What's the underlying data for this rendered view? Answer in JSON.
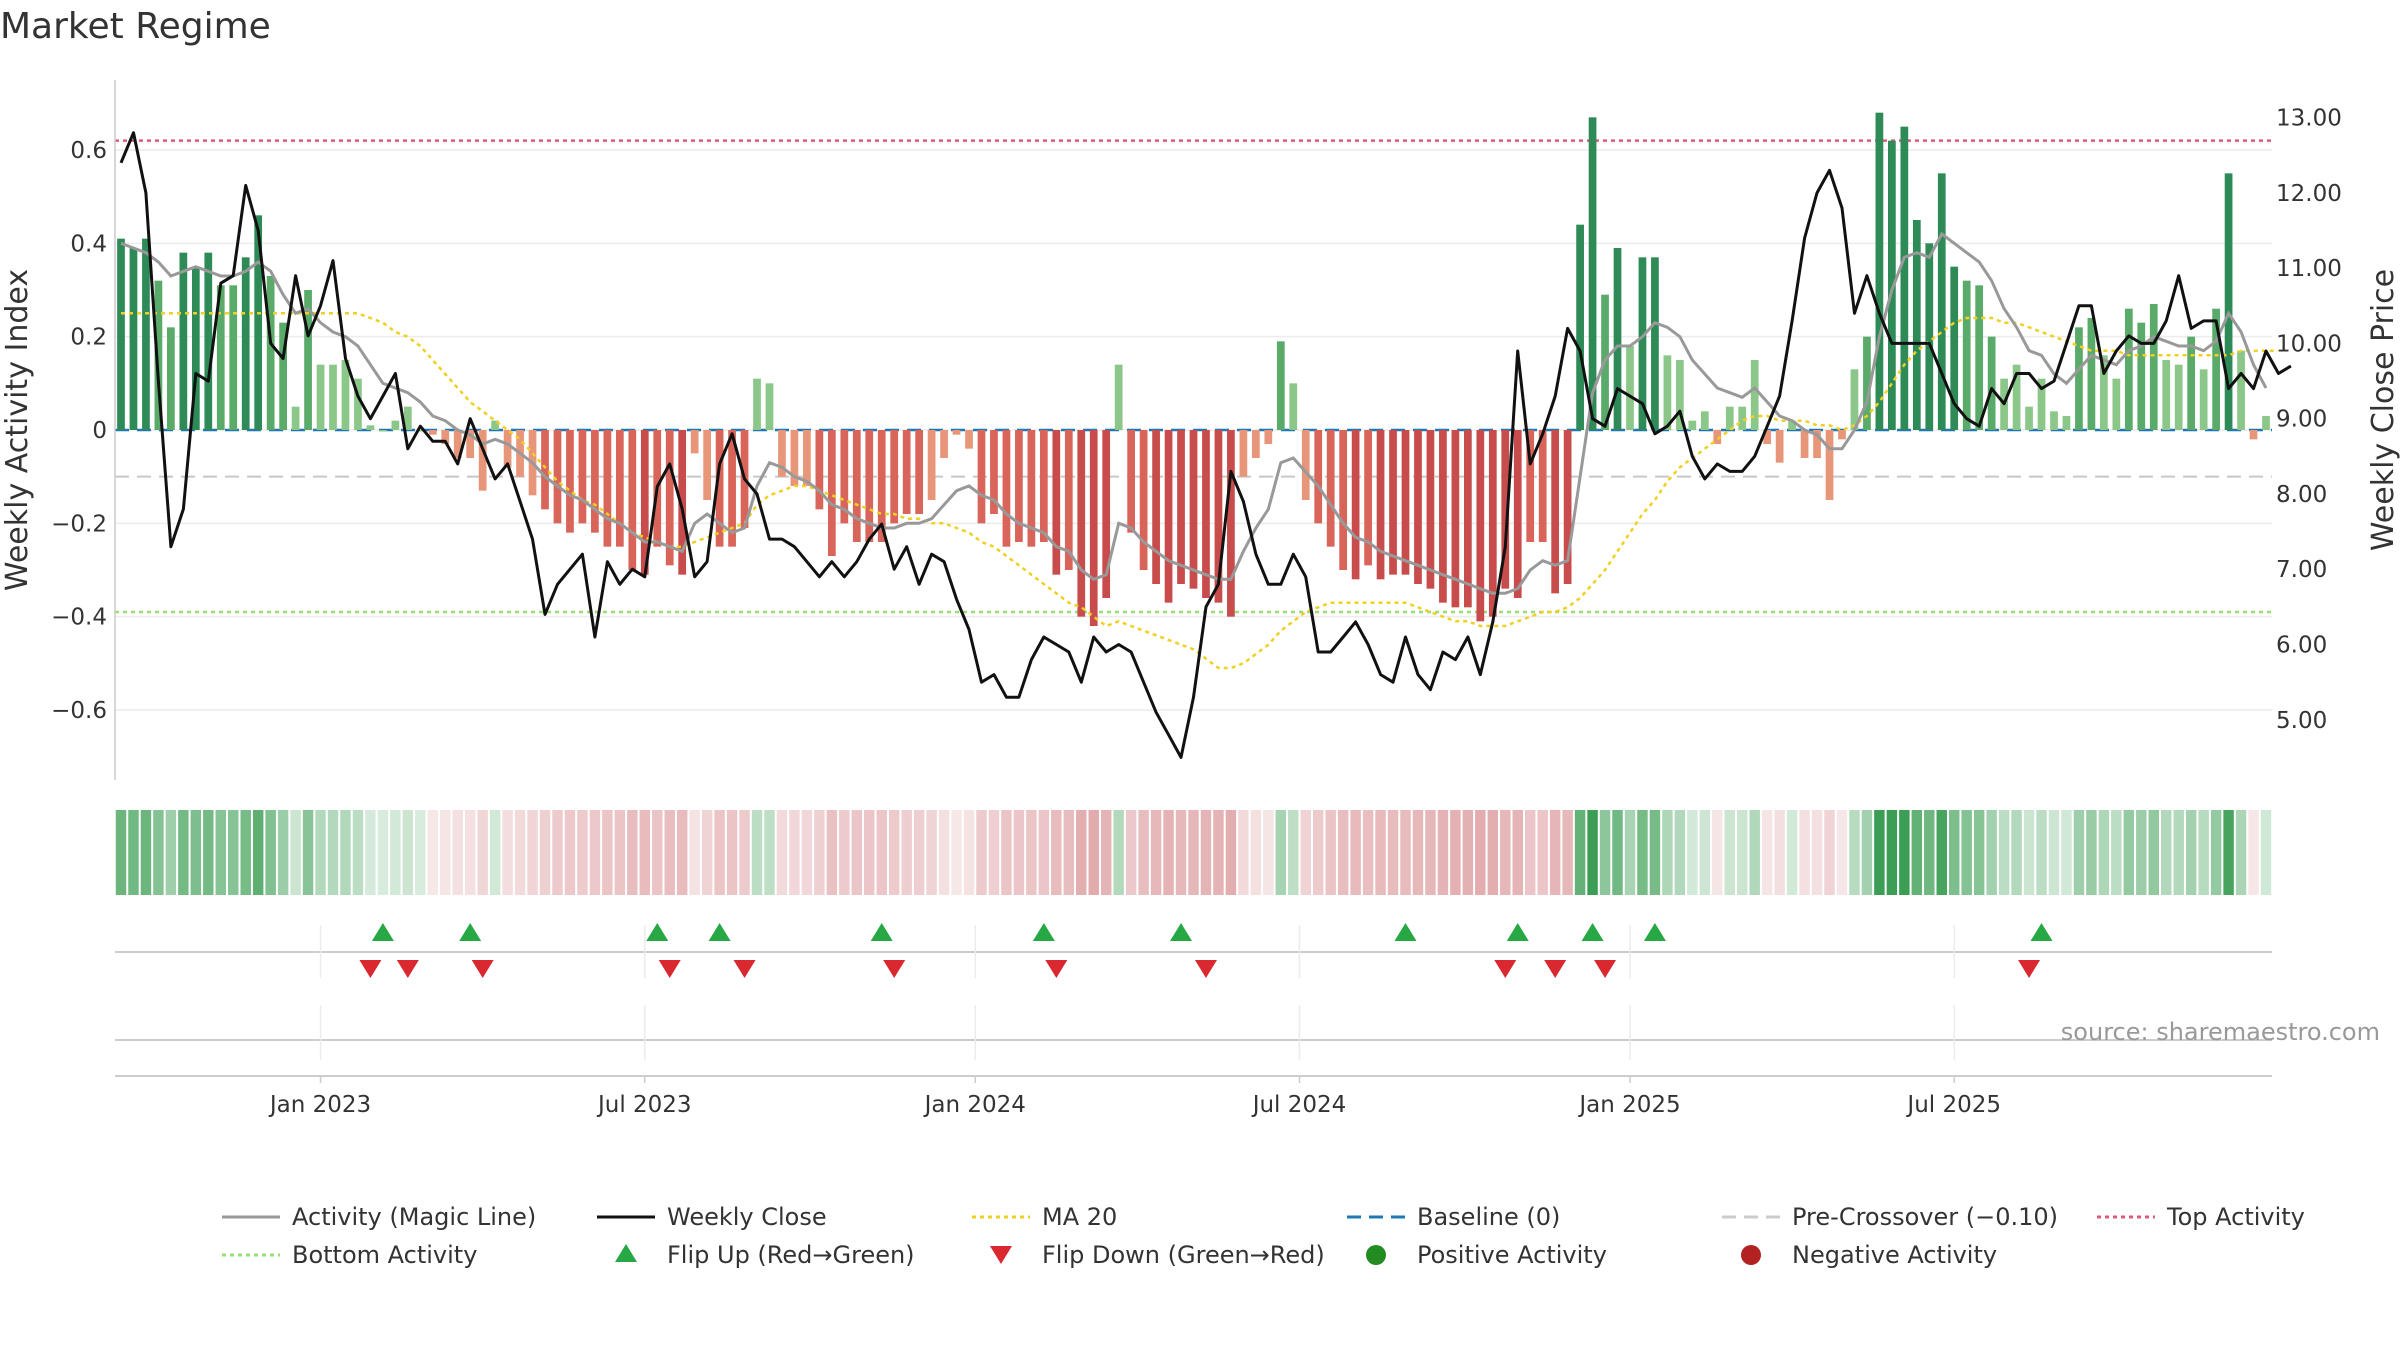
{
  "chart_data": {
    "type": "bar",
    "title": "Market Regime",
    "source": "source: sharemaestro.com",
    "ylabel_left": "Weekly Activity Index",
    "ylabel_right": "Weekly Close Price",
    "ylim_left": [
      -0.75,
      0.75
    ],
    "ylim_right": [
      4.2,
      13.5
    ],
    "yticks_left": [
      -0.6,
      -0.4,
      -0.2,
      0,
      0.2,
      0.4,
      0.6
    ],
    "yticks_left_labels": [
      "−0.6",
      "−0.4",
      "−0.2",
      "0",
      "0.2",
      "0.4",
      "0.6"
    ],
    "yticks_right": [
      5,
      6,
      7,
      8,
      9,
      10,
      11,
      12,
      13
    ],
    "yticks_right_labels": [
      "5.00",
      "6.00",
      "7.00",
      "8.00",
      "9.00",
      "10.00",
      "11.00",
      "12.00",
      "13.00"
    ],
    "x_ticks": [
      {
        "label": "Jan 2023",
        "week": 16
      },
      {
        "label": "Jul 2023",
        "week": 42
      },
      {
        "label": "Jan 2024",
        "week": 68.5
      },
      {
        "label": "Jul 2024",
        "week": 94.5
      },
      {
        "label": "Jan 2025",
        "week": 121
      },
      {
        "label": "Jul 2025",
        "week": 147
      }
    ],
    "reference_lines": {
      "top_activity": 0.62,
      "bottom_activity": -0.39,
      "pre_crossover": -0.1,
      "baseline": 0
    },
    "activity": [
      0.41,
      0.39,
      0.41,
      0.32,
      0.22,
      0.38,
      0.35,
      0.38,
      0.31,
      0.31,
      0.37,
      0.46,
      0.33,
      0.23,
      0.05,
      0.3,
      0.14,
      0.14,
      0.15,
      0.11,
      0.01,
      0,
      0.02,
      0.05,
      0,
      -0.01,
      -0.03,
      -0.06,
      -0.06,
      -0.13,
      0.02,
      -0.08,
      -0.1,
      -0.14,
      -0.17,
      -0.2,
      -0.22,
      -0.2,
      -0.22,
      -0.25,
      -0.25,
      -0.3,
      -0.31,
      -0.25,
      -0.29,
      -0.31,
      -0.05,
      -0.15,
      -0.25,
      -0.25,
      -0.21,
      0.11,
      0.1,
      -0.1,
      -0.12,
      -0.12,
      -0.17,
      -0.27,
      -0.2,
      -0.24,
      -0.24,
      -0.24,
      -0.2,
      -0.18,
      -0.18,
      -0.15,
      -0.06,
      -0.01,
      -0.04,
      -0.2,
      -0.18,
      -0.25,
      -0.24,
      -0.25,
      -0.24,
      -0.31,
      -0.3,
      -0.4,
      -0.42,
      -0.36,
      0.14,
      -0.22,
      -0.3,
      -0.33,
      -0.37,
      -0.33,
      -0.34,
      -0.36,
      -0.37,
      -0.4,
      -0.1,
      -0.06,
      -0.03,
      0.19,
      0.1,
      -0.15,
      -0.2,
      -0.25,
      -0.3,
      -0.32,
      -0.29,
      -0.32,
      -0.31,
      -0.31,
      -0.33,
      -0.34,
      -0.37,
      -0.38,
      -0.38,
      -0.41,
      -0.4,
      -0.34,
      -0.36,
      -0.24,
      -0.24,
      -0.35,
      -0.33,
      0.44,
      0.67,
      0.29,
      0.39,
      0.18,
      0.37,
      0.37,
      0.16,
      0.15,
      0.02,
      0.04,
      -0.03,
      0.05,
      0.05,
      0.15,
      -0.03,
      -0.07,
      0.02,
      -0.06,
      -0.06,
      -0.15,
      -0.02,
      0.13,
      0.2,
      0.68,
      0.62,
      0.65,
      0.45,
      0.4,
      0.55,
      0.35,
      0.32,
      0.31,
      0.2,
      0.11,
      0.14,
      0.05,
      0.11,
      0.04,
      0.03,
      0.22,
      0.24,
      0.16,
      0.11,
      0.26,
      0.23,
      0.27,
      0.15,
      0.14,
      0.2,
      0.13,
      0.26,
      0.55,
      0.17,
      -0.02,
      0.03
    ],
    "magic_line": [
      0.4,
      0.39,
      0.38,
      0.36,
      0.33,
      0.34,
      0.35,
      0.34,
      0.33,
      0.33,
      0.34,
      0.36,
      0.34,
      0.29,
      0.25,
      0.26,
      0.23,
      0.21,
      0.2,
      0.18,
      0.14,
      0.1,
      0.09,
      0.08,
      0.06,
      0.03,
      0.02,
      0,
      -0.01,
      -0.03,
      -0.02,
      -0.03,
      -0.05,
      -0.07,
      -0.1,
      -0.12,
      -0.14,
      -0.15,
      -0.17,
      -0.19,
      -0.2,
      -0.22,
      -0.24,
      -0.24,
      -0.25,
      -0.26,
      -0.2,
      -0.18,
      -0.2,
      -0.22,
      -0.21,
      -0.12,
      -0.07,
      -0.08,
      -0.1,
      -0.11,
      -0.13,
      -0.16,
      -0.17,
      -0.19,
      -0.2,
      -0.21,
      -0.21,
      -0.2,
      -0.2,
      -0.19,
      -0.16,
      -0.13,
      -0.12,
      -0.14,
      -0.15,
      -0.18,
      -0.2,
      -0.21,
      -0.22,
      -0.25,
      -0.26,
      -0.3,
      -0.32,
      -0.31,
      -0.2,
      -0.21,
      -0.24,
      -0.26,
      -0.28,
      -0.29,
      -0.3,
      -0.31,
      -0.32,
      -0.32,
      -0.26,
      -0.21,
      -0.17,
      -0.07,
      -0.06,
      -0.09,
      -0.12,
      -0.16,
      -0.2,
      -0.23,
      -0.24,
      -0.26,
      -0.27,
      -0.28,
      -0.29,
      -0.3,
      -0.31,
      -0.32,
      -0.33,
      -0.34,
      -0.35,
      -0.35,
      -0.34,
      -0.3,
      -0.28,
      -0.29,
      -0.28,
      -0.1,
      0.08,
      0.15,
      0.18,
      0.18,
      0.2,
      0.23,
      0.22,
      0.2,
      0.15,
      0.12,
      0.09,
      0.08,
      0.07,
      0.09,
      0.06,
      0.03,
      0.02,
      0,
      -0.01,
      -0.04,
      -0.04,
      0,
      0.06,
      0.2,
      0.3,
      0.37,
      0.38,
      0.37,
      0.42,
      0.4,
      0.38,
      0.36,
      0.32,
      0.26,
      0.22,
      0.17,
      0.16,
      0.12,
      0.1,
      0.13,
      0.16,
      0.15,
      0.14,
      0.17,
      0.18,
      0.2,
      0.19,
      0.18,
      0.18,
      0.17,
      0.19,
      0.25,
      0.21,
      0.14,
      0.09
    ],
    "ma20": [
      0.25,
      0.25,
      0.25,
      0.25,
      0.25,
      0.25,
      0.25,
      0.25,
      0.25,
      0.25,
      0.25,
      0.25,
      0.25,
      0.25,
      0.25,
      0.25,
      0.25,
      0.25,
      0.25,
      0.25,
      0.24,
      0.23,
      0.21,
      0.2,
      0.18,
      0.15,
      0.12,
      0.09,
      0.06,
      0.04,
      0.02,
      0,
      -0.02,
      -0.05,
      -0.08,
      -0.11,
      -0.13,
      -0.15,
      -0.16,
      -0.18,
      -0.2,
      -0.22,
      -0.23,
      -0.24,
      -0.25,
      -0.25,
      -0.24,
      -0.23,
      -0.22,
      -0.21,
      -0.2,
      -0.16,
      -0.14,
      -0.13,
      -0.12,
      -0.12,
      -0.13,
      -0.14,
      -0.15,
      -0.16,
      -0.17,
      -0.18,
      -0.18,
      -0.19,
      -0.19,
      -0.2,
      -0.2,
      -0.21,
      -0.22,
      -0.24,
      -0.25,
      -0.27,
      -0.29,
      -0.31,
      -0.33,
      -0.35,
      -0.37,
      -0.38,
      -0.4,
      -0.42,
      -0.41,
      -0.42,
      -0.43,
      -0.44,
      -0.45,
      -0.46,
      -0.47,
      -0.49,
      -0.51,
      -0.51,
      -0.5,
      -0.48,
      -0.46,
      -0.43,
      -0.41,
      -0.39,
      -0.38,
      -0.37,
      -0.37,
      -0.37,
      -0.37,
      -0.37,
      -0.37,
      -0.37,
      -0.38,
      -0.39,
      -0.4,
      -0.41,
      -0.41,
      -0.42,
      -0.42,
      -0.42,
      -0.41,
      -0.4,
      -0.39,
      -0.39,
      -0.38,
      -0.36,
      -0.33,
      -0.3,
      -0.26,
      -0.22,
      -0.18,
      -0.15,
      -0.11,
      -0.08,
      -0.06,
      -0.04,
      -0.02,
      0,
      0.02,
      0.03,
      0.03,
      0.02,
      0.02,
      0.02,
      0.01,
      0.01,
      0,
      0.01,
      0.03,
      0.06,
      0.1,
      0.14,
      0.17,
      0.19,
      0.21,
      0.23,
      0.24,
      0.24,
      0.24,
      0.23,
      0.23,
      0.22,
      0.21,
      0.2,
      0.19,
      0.18,
      0.17,
      0.17,
      0.17,
      0.16,
      0.16,
      0.16,
      0.16,
      0.16,
      0.16,
      0.16,
      0.16,
      0.16,
      0.17,
      0.17,
      0.17,
      0.17
    ],
    "weekly_close": [
      12.4,
      12.8,
      12.0,
      9.5,
      7.3,
      7.8,
      9.6,
      9.5,
      10.8,
      10.9,
      12.1,
      11.5,
      10.0,
      9.8,
      10.9,
      10.1,
      10.5,
      11.1,
      9.8,
      9.3,
      9.0,
      9.3,
      9.6,
      8.6,
      8.9,
      8.7,
      8.7,
      8.4,
      9.0,
      8.6,
      8.2,
      8.4,
      7.9,
      7.4,
      6.4,
      6.8,
      7.0,
      7.2,
      6.1,
      7.1,
      6.8,
      7.0,
      6.9,
      8.1,
      8.4,
      7.8,
      6.9,
      7.1,
      8.4,
      8.8,
      8.2,
      8.0,
      7.4,
      7.4,
      7.3,
      7.1,
      6.9,
      7.1,
      6.9,
      7.1,
      7.4,
      7.6,
      7.0,
      7.3,
      6.8,
      7.2,
      7.1,
      6.6,
      6.2,
      5.5,
      5.6,
      5.3,
      5.3,
      5.8,
      6.1,
      6.0,
      5.9,
      5.5,
      6.1,
      5.9,
      6.0,
      5.9,
      5.5,
      5.1,
      4.8,
      4.5,
      5.3,
      6.5,
      6.8,
      8.3,
      7.9,
      7.2,
      6.8,
      6.8,
      7.2,
      6.9,
      5.9,
      5.9,
      6.1,
      6.3,
      6.0,
      5.6,
      5.5,
      6.1,
      5.6,
      5.4,
      5.9,
      5.8,
      6.1,
      5.6,
      6.3,
      7.3,
      9.9,
      8.4,
      8.8,
      9.3,
      10.2,
      9.9,
      9.0,
      8.9,
      9.4,
      9.3,
      9.2,
      8.8,
      8.9,
      9.1,
      8.5,
      8.2,
      8.4,
      8.3,
      8.3,
      8.5,
      8.9,
      9.3,
      10.3,
      11.4,
      12.0,
      12.3,
      11.8,
      10.4,
      10.9,
      10.4,
      10.0,
      10.0,
      10.0,
      10.0,
      9.6,
      9.2,
      9.0,
      8.9,
      9.4,
      9.2,
      9.6,
      9.6,
      9.4,
      9.5,
      10.0,
      10.5,
      10.5,
      9.6,
      9.9,
      10.1,
      10.0,
      10.0,
      10.3,
      10.9,
      10.2,
      10.3,
      10.3,
      9.4,
      9.6,
      9.4,
      9.9,
      9.6,
      9.7
    ],
    "flip_up_weeks": [
      21,
      28,
      43,
      48,
      61,
      74,
      85,
      103,
      112,
      118,
      123,
      154
    ],
    "flip_down_weeks": [
      20,
      23,
      29,
      44,
      50,
      62,
      75,
      87,
      111,
      115,
      119,
      153
    ],
    "legend": [
      {
        "label": "Activity (Magic Line)",
        "style": "line",
        "color": "#999999"
      },
      {
        "label": "Weekly Close",
        "style": "line",
        "color": "#111111"
      },
      {
        "label": "MA 20",
        "style": "dotted",
        "color": "#f0d020"
      },
      {
        "label": "Baseline (0)",
        "style": "dashed",
        "color": "#1f77b4"
      },
      {
        "label": "Pre-Crossover (−0.10)",
        "style": "dashed",
        "color": "#cccccc"
      },
      {
        "label": "Top Activity",
        "style": "dotted",
        "color": "#e05a7a"
      },
      {
        "label": "Bottom Activity",
        "style": "dotted",
        "color": "#99dd77"
      },
      {
        "label": "Flip Up (Red→Green)",
        "style": "triangle-up",
        "color": "#27a844"
      },
      {
        "label": "Flip Down (Green→Red)",
        "style": "triangle-down",
        "color": "#d9282f"
      },
      {
        "label": "Positive Activity",
        "style": "dot",
        "color": "#228b22"
      },
      {
        "label": "Negative Activity",
        "style": "dot",
        "color": "#b22222"
      }
    ]
  },
  "colors": {
    "pos_strong": "#2e8b57",
    "pos_mid": "#5aaa6a",
    "pos_light": "#8cc78a",
    "neg_strong": "#c84c4c",
    "neg_mid": "#d9655a",
    "neg_light": "#e8967a",
    "band_pos": "#3c9e54",
    "band_neg": "#c0484e",
    "grid": "#ececec",
    "axis": "#cccccc"
  }
}
